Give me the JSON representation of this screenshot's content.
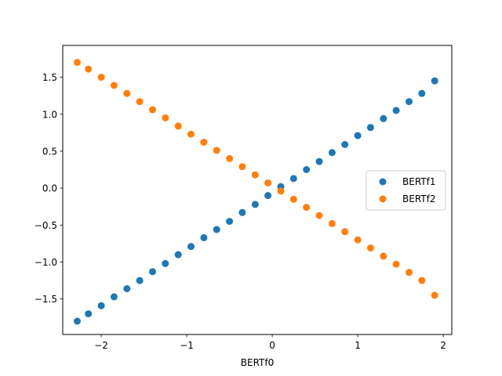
{
  "chart_data": {
    "type": "scatter",
    "title": "",
    "xlabel": "BERTf0",
    "ylabel": "",
    "xlim": [
      -2.45,
      2.1
    ],
    "ylim": [
      -1.98,
      1.93
    ],
    "xticks": [
      -2,
      -1,
      0,
      1,
      2
    ],
    "xtick_labels": [
      "−2",
      "−1",
      "0",
      "1",
      "2"
    ],
    "yticks": [
      -1.5,
      -1.0,
      -0.5,
      0.0,
      0.5,
      1.0,
      1.5
    ],
    "ytick_labels": [
      "−1.5",
      "−1.0",
      "−0.5",
      "0.0",
      "0.5",
      "1.0",
      "1.5"
    ],
    "grid": false,
    "legend_position": "center-right",
    "series": [
      {
        "name": "BERTf1",
        "color": "#1f77b4",
        "x": [
          -2.28,
          -2.15,
          -2.0,
          -1.85,
          -1.7,
          -1.55,
          -1.4,
          -1.25,
          -1.1,
          -0.95,
          -0.8,
          -0.65,
          -0.5,
          -0.35,
          -0.2,
          -0.05,
          0.1,
          0.25,
          0.4,
          0.55,
          0.7,
          0.85,
          1.0,
          1.15,
          1.3,
          1.45,
          1.6,
          1.75,
          1.9
        ],
        "y": [
          -1.8,
          -1.7,
          -1.59,
          -1.47,
          -1.36,
          -1.25,
          -1.13,
          -1.02,
          -0.9,
          -0.79,
          -0.67,
          -0.56,
          -0.45,
          -0.33,
          -0.22,
          -0.1,
          0.02,
          0.13,
          0.25,
          0.36,
          0.48,
          0.59,
          0.71,
          0.82,
          0.94,
          1.05,
          1.17,
          1.28,
          1.45
        ]
      },
      {
        "name": "BERTf2",
        "color": "#ff7f0e",
        "x": [
          -2.28,
          -2.15,
          -2.0,
          -1.85,
          -1.7,
          -1.55,
          -1.4,
          -1.25,
          -1.1,
          -0.95,
          -0.8,
          -0.65,
          -0.5,
          -0.35,
          -0.2,
          -0.05,
          0.1,
          0.25,
          0.4,
          0.55,
          0.7,
          0.85,
          1.0,
          1.15,
          1.3,
          1.45,
          1.6,
          1.75,
          1.9
        ],
        "y": [
          1.7,
          1.61,
          1.5,
          1.39,
          1.28,
          1.17,
          1.06,
          0.95,
          0.84,
          0.73,
          0.62,
          0.51,
          0.4,
          0.29,
          0.18,
          0.07,
          -0.04,
          -0.15,
          -0.26,
          -0.37,
          -0.48,
          -0.59,
          -0.7,
          -0.81,
          -0.92,
          -1.03,
          -1.14,
          -1.25,
          -1.45
        ]
      }
    ]
  }
}
